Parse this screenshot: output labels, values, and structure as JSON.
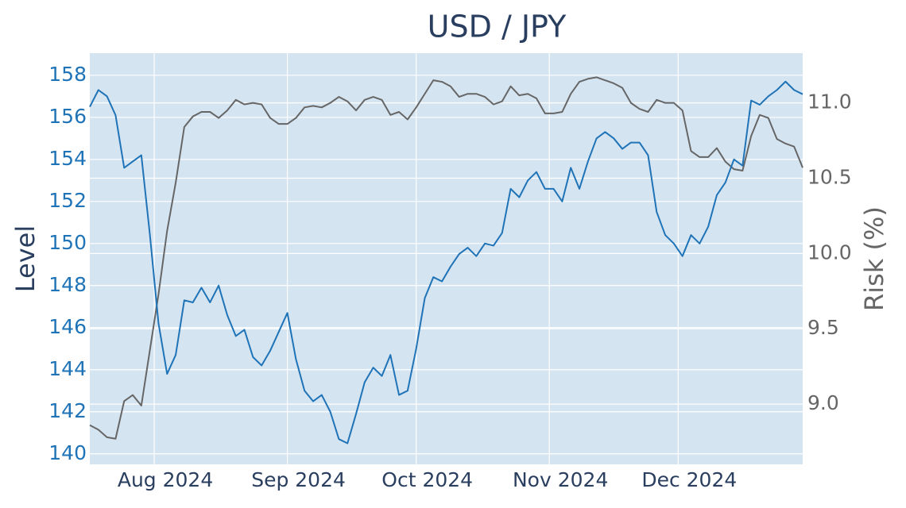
{
  "chart_data": {
    "type": "line",
    "title": "USD / JPY",
    "y_label": "Level",
    "y2_label": "Risk (%)",
    "xlim": [
      0,
      83
    ],
    "xticks": [
      {
        "value": 7.5,
        "label": "Aug 2024"
      },
      {
        "value": 23,
        "label": "Sep 2024"
      },
      {
        "value": 38,
        "label": "Oct 2024"
      },
      {
        "value": 53.5,
        "label": "Nov 2024"
      },
      {
        "value": 68.5,
        "label": "Dec 2024"
      }
    ],
    "ylim": [
      139.5,
      159.05
    ],
    "yticks": [
      140,
      142,
      144,
      146,
      148,
      150,
      152,
      154,
      156,
      158
    ],
    "y2lim": [
      8.6,
      11.33
    ],
    "y2ticks": [
      {
        "value": 9,
        "label": "9.0"
      },
      9.5,
      {
        "value": 10,
        "label": "10.0"
      },
      10.5,
      {
        "value": 11,
        "label": "11.0"
      }
    ],
    "grid": true,
    "series": [
      {
        "color": "#1f73b7",
        "values": [
          156.5,
          157.3,
          157.0,
          156.1,
          153.6,
          153.9,
          154.2,
          150.4,
          146.2,
          143.8,
          144.7,
          147.3,
          147.2,
          147.9,
          147.2,
          148.0,
          146.6,
          145.6,
          145.9,
          144.6,
          144.2,
          144.9,
          145.8,
          146.7,
          144.5,
          143.0,
          142.5,
          142.8,
          142.0,
          140.7,
          140.5,
          141.9,
          143.4,
          144.1,
          143.7,
          144.7,
          142.8,
          143.0,
          145.0,
          147.4,
          148.4,
          148.2,
          148.9,
          149.5,
          149.8,
          149.4,
          150.0,
          149.9,
          150.5,
          152.6,
          152.2,
          153.0,
          153.4,
          152.6,
          152.6,
          152.0,
          153.6,
          152.6,
          153.9,
          155.0,
          155.3,
          155.0,
          154.5,
          154.8,
          154.8,
          154.2,
          151.5,
          150.4,
          150.0,
          149.4,
          150.4,
          150.0,
          150.8,
          152.3,
          152.9,
          154.0,
          153.7,
          156.8,
          156.6,
          157.0,
          157.3,
          157.7,
          157.3,
          157.1
        ]
      },
      {
        "color": "#666666",
        "axis": "y2",
        "values": [
          8.86,
          8.83,
          8.78,
          8.77,
          9.02,
          9.06,
          8.99,
          9.36,
          9.73,
          10.15,
          10.47,
          10.84,
          10.91,
          10.94,
          10.94,
          10.9,
          10.95,
          11.02,
          10.99,
          11.0,
          10.99,
          10.9,
          10.86,
          10.86,
          10.9,
          10.97,
          10.98,
          10.97,
          11.0,
          11.04,
          11.01,
          10.95,
          11.02,
          11.04,
          11.02,
          10.92,
          10.94,
          10.89,
          10.97,
          11.06,
          11.15,
          11.14,
          11.11,
          11.04,
          11.06,
          11.06,
          11.04,
          10.99,
          11.01,
          11.11,
          11.05,
          11.06,
          11.03,
          10.93,
          10.93,
          10.94,
          11.06,
          11.14,
          11.16,
          11.17,
          11.15,
          11.13,
          11.1,
          11.0,
          10.96,
          10.94,
          11.02,
          11.0,
          11.0,
          10.95,
          10.68,
          10.64,
          10.64,
          10.7,
          10.61,
          10.56,
          10.55,
          10.78,
          10.92,
          10.9,
          10.76,
          10.73,
          10.71,
          10.57
        ]
      }
    ]
  }
}
